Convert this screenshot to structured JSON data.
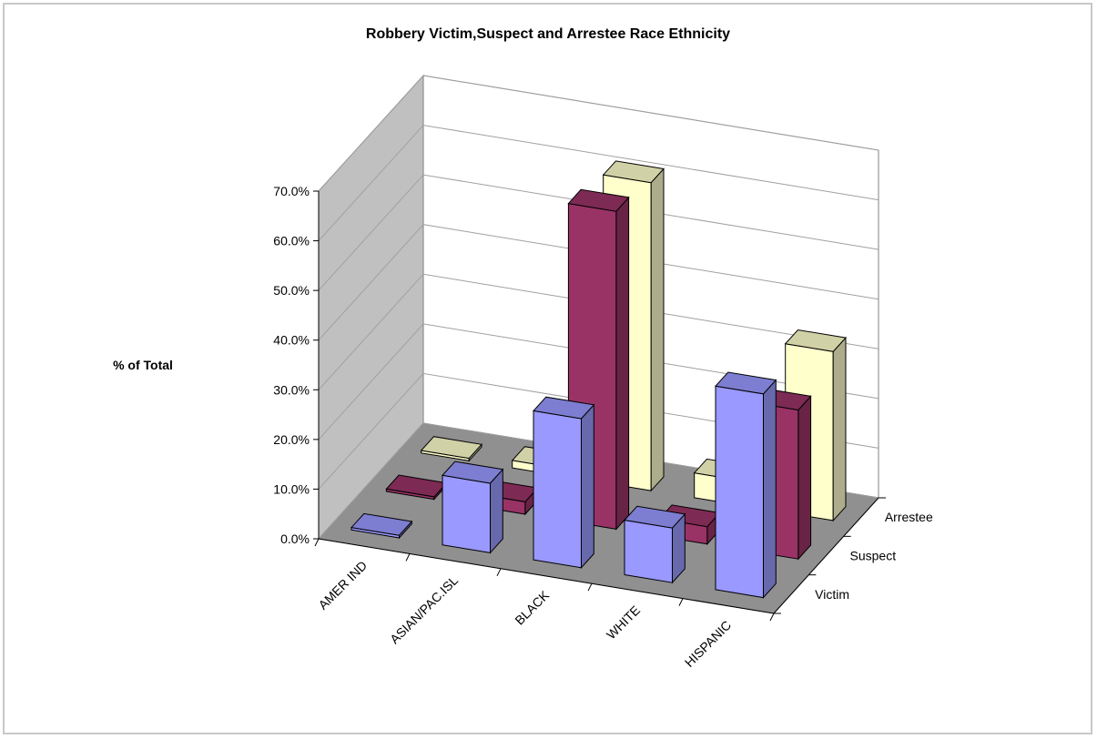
{
  "chart_data": {
    "type": "bar",
    "title": "Robbery Victim,Suspect and Arrestee Race Ethnicity",
    "ylabel": "% of Total",
    "xlabel": "",
    "ylim": [
      0,
      70
    ],
    "y_tick_labels": [
      "0.0%",
      "10.0%",
      "20.0%",
      "30.0%",
      "40.0%",
      "50.0%",
      "60.0%",
      "70.0%"
    ],
    "categories": [
      "AMER IND",
      "ASIAN/PAC.ISL",
      "BLACK",
      "WHITE",
      "HISPANIC"
    ],
    "series": [
      {
        "name": "Victim",
        "values": [
          0.5,
          14.0,
          30.0,
          11.0,
          41.0
        ],
        "color": "#9999ff"
      },
      {
        "name": "Suspect",
        "values": [
          0.5,
          2.5,
          64.0,
          3.5,
          30.0
        ],
        "color": "#993366"
      },
      {
        "name": "Arrestee",
        "values": [
          0.5,
          1.5,
          62.0,
          5.0,
          34.0
        ],
        "color": "#ffffcc"
      }
    ],
    "grid": true,
    "style": "3d-column",
    "depth_labels": [
      "Arrestee",
      "Suspect",
      "Victim"
    ]
  }
}
